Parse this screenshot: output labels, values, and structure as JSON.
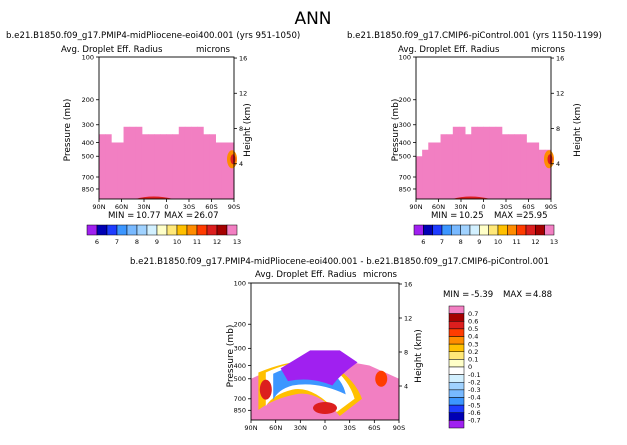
{
  "page_title": "ANN",
  "colors": {
    "pink": "#f27fc2",
    "purple": "#a020f0",
    "frame": "#000000",
    "diff_white": "#ffffff"
  },
  "chart_data": [
    {
      "id": "left",
      "type": "heatmap",
      "case_label": "b.e21.B1850.f09_g17.PMIP4-midPliocene-eoi400.001 (yrs 951-1050)",
      "title": "Avg. Droplet Eff. Radius",
      "units": "microns",
      "ylabel": "Pressure (mb)",
      "ylabel_right": "Height (km)",
      "x_ticks": [
        "90N",
        "60N",
        "30N",
        "0",
        "30S",
        "60S",
        "90S"
      ],
      "y_ticks": [
        "100",
        "200",
        "300",
        "400",
        "500",
        "700",
        "850"
      ],
      "y_ticks_right": [
        "16",
        "12",
        "8",
        "4"
      ],
      "ylim_mb": [
        100,
        1000
      ],
      "min_label": "MIN =",
      "min_value": "10.77",
      "max_label": "MAX =",
      "max_value": "26.07",
      "region_top_mb": [
        350,
        350,
        400,
        400,
        310,
        310,
        310,
        350,
        350,
        350,
        350,
        350,
        350,
        310,
        310,
        310,
        310,
        350,
        350,
        400,
        400,
        400
      ],
      "colorbar_labels": [
        "6",
        "7",
        "8",
        "9",
        "10",
        "11",
        "12",
        "13"
      ]
    },
    {
      "id": "right",
      "type": "heatmap",
      "case_label": "b.e21.B1850.f09_g17.CMIP6-piControl.001 (yrs 1150-1199)",
      "title": "Avg. Droplet Eff. Radius",
      "units": "microns",
      "ylabel": "Pressure (mb)",
      "ylabel_right": "Height (km)",
      "x_ticks": [
        "90N",
        "60N",
        "30N",
        "0",
        "30S",
        "60S",
        "90S"
      ],
      "y_ticks": [
        "100",
        "200",
        "300",
        "400",
        "500",
        "700",
        "850"
      ],
      "y_ticks_right": [
        "16",
        "12",
        "8",
        "4"
      ],
      "ylim_mb": [
        100,
        1000
      ],
      "min_label": "MIN =",
      "min_value": "10.25",
      "max_label": "MAX =",
      "max_value": "25.95",
      "region_top_mb": [
        500,
        450,
        400,
        400,
        350,
        350,
        310,
        310,
        350,
        310,
        310,
        310,
        310,
        310,
        350,
        350,
        350,
        350,
        400,
        400,
        450,
        450
      ],
      "colorbar_labels": [
        "6",
        "7",
        "8",
        "9",
        "10",
        "11",
        "12",
        "13"
      ]
    },
    {
      "id": "diff",
      "type": "heatmap",
      "case_label": "b.e21.B1850.f09_g17.PMIP4-midPliocene-eoi400.001 - b.e21.B1850.f09_g17.CMIP6-piControl.001",
      "title": "Avg. Droplet Eff. Radius",
      "units": "microns",
      "ylabel": "Pressure (mb)",
      "ylabel_right": "Height (km)",
      "x_ticks": [
        "90N",
        "60N",
        "30N",
        "0",
        "30S",
        "60S",
        "90S"
      ],
      "y_ticks": [
        "100",
        "200",
        "300",
        "400",
        "500",
        "700",
        "850"
      ],
      "y_ticks_right": [
        "16",
        "12",
        "8",
        "4"
      ],
      "ylim_mb": [
        100,
        1000
      ],
      "min_label": "MIN =",
      "min_value": "-5.39",
      "max_label": "MAX =",
      "max_value": "4.88",
      "colorbar_labels": [
        "0.7",
        "0.6",
        "0.5",
        "0.4",
        "0.3",
        "0.2",
        "0.1",
        "0",
        "-0.1",
        "-0.2",
        "-0.3",
        "-0.4",
        "-0.5",
        "-0.6",
        "-0.7"
      ]
    }
  ]
}
